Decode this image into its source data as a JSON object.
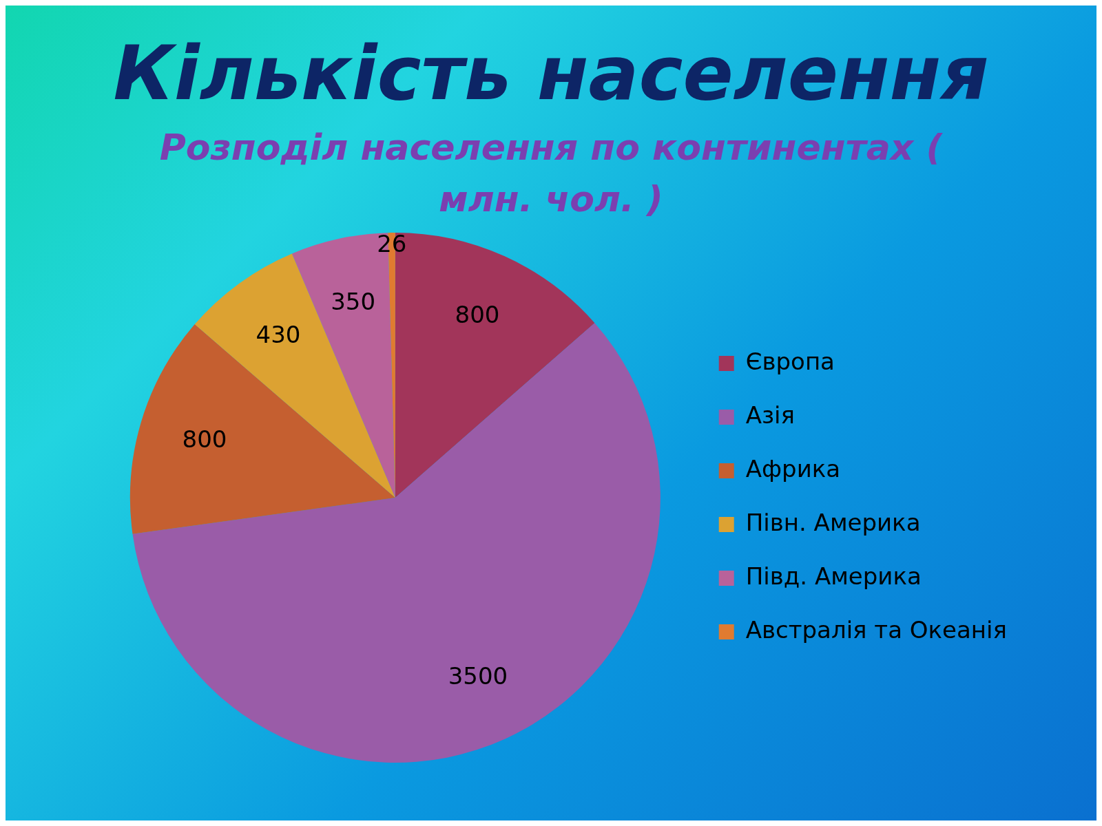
{
  "chart_data": {
    "type": "pie",
    "title": "Кількість населення",
    "subtitle": "Розподіл населення по континентах ( млн. чол. )",
    "categories": [
      "Європа",
      "Азія",
      "Африка",
      "Півн. Америка",
      "Півд. Америка",
      "Австралія та Океанія"
    ],
    "values": [
      800,
      3500,
      800,
      430,
      350,
      26
    ],
    "colors": [
      "#a2355a",
      "#9a5ca8",
      "#c55f30",
      "#dca232",
      "#b9629a",
      "#e07b30"
    ],
    "data_labels": true,
    "legend": "right"
  }
}
